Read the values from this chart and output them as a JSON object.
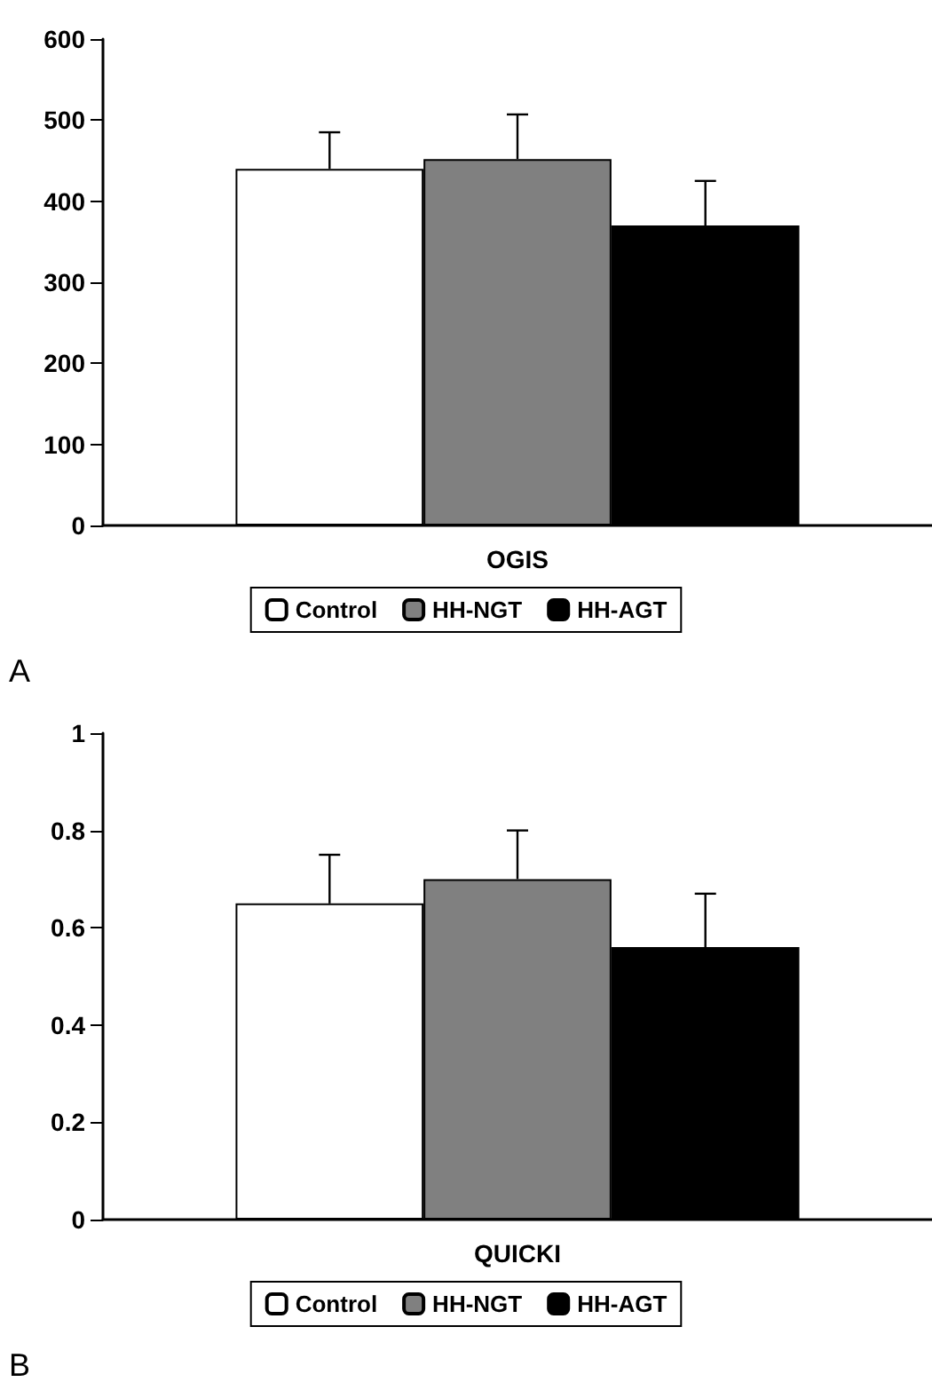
{
  "chart_data": [
    {
      "type": "bar",
      "categories": [
        "OGIS"
      ],
      "series": [
        {
          "name": "Control",
          "color": "#ffffff",
          "values": [
            440
          ],
          "errors": [
            [
              440,
              485
            ]
          ]
        },
        {
          "name": "HH-NGT",
          "color": "#808080",
          "values": [
            452
          ],
          "errors": [
            [
              452,
              507
            ]
          ]
        },
        {
          "name": "HH-AGT",
          "color": "#000000",
          "values": [
            370
          ],
          "errors": [
            [
              370,
              425
            ]
          ]
        }
      ],
      "ylim": [
        0,
        600
      ],
      "yticks": [
        0,
        100,
        200,
        300,
        400,
        500,
        600
      ],
      "grid": false,
      "legend": "bottom",
      "annotations": [
        "A"
      ]
    },
    {
      "type": "bar",
      "categories": [
        "QUICKI"
      ],
      "series": [
        {
          "name": "Control",
          "color": "#ffffff",
          "values": [
            0.65
          ],
          "errors": [
            [
              0.65,
              0.75
            ]
          ]
        },
        {
          "name": "HH-NGT",
          "color": "#808080",
          "values": [
            0.7
          ],
          "errors": [
            [
              0.7,
              0.8
            ]
          ]
        },
        {
          "name": "HH-AGT",
          "color": "#000000",
          "values": [
            0.56
          ],
          "errors": [
            [
              0.56,
              0.67
            ]
          ]
        }
      ],
      "ylim": [
        0,
        1
      ],
      "yticks": [
        0,
        0.2,
        0.4,
        0.6,
        0.8,
        1
      ],
      "grid": false,
      "legend": "bottom",
      "annotations": [
        "B"
      ]
    }
  ]
}
